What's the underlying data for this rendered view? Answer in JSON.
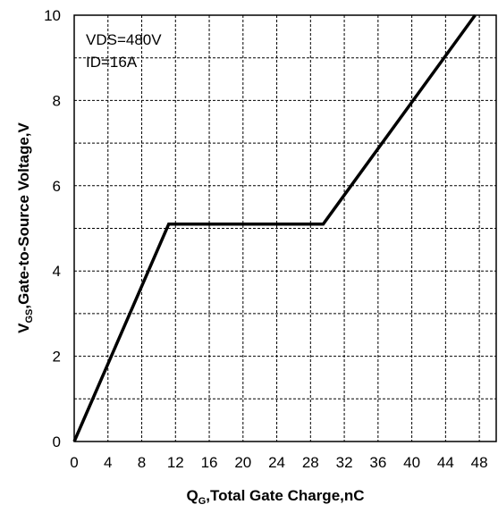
{
  "chart_data": {
    "type": "line",
    "xlabel": {
      "main": "Q",
      "sub": "G",
      "rest": ",Total Gate Charge,nC"
    },
    "ylabel": {
      "main": "V",
      "sub": "GS",
      "rest": ",Gate-to-Source Voltage,V"
    },
    "xlim": [
      0,
      50
    ],
    "ylim": [
      0,
      10
    ],
    "x_ticks": [
      0,
      4,
      8,
      12,
      16,
      20,
      24,
      28,
      32,
      36,
      40,
      44,
      48
    ],
    "y_ticks": [
      0,
      2,
      4,
      6,
      8,
      10
    ],
    "x_gridlines": [
      4,
      8,
      12,
      16,
      20,
      24,
      28,
      32,
      36,
      40,
      44,
      48
    ],
    "y_gridlines": [
      1,
      2,
      3,
      4,
      5,
      6,
      7,
      8,
      9
    ],
    "grid": "dashed",
    "annotations": [
      "VDS=480V",
      "ID=16A"
    ],
    "series": [
      {
        "color": "#000000",
        "x": [
          0,
          11.2,
          29.5,
          47.5
        ],
        "y": [
          0,
          5.1,
          5.1,
          10
        ]
      }
    ]
  }
}
